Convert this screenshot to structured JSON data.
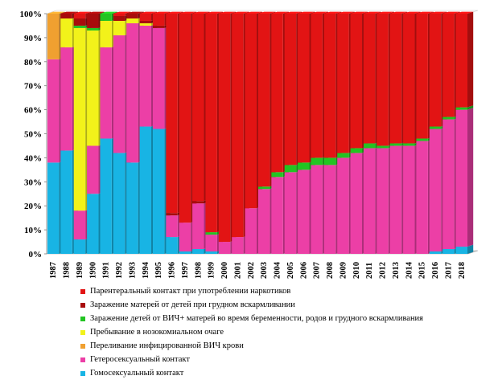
{
  "chart_data": {
    "type": "bar",
    "stacked": true,
    "percent": true,
    "title": "",
    "xlabel": "",
    "ylabel": "",
    "ylim": [
      0,
      100
    ],
    "yticks": [
      "0%",
      "10%",
      "20%",
      "30%",
      "40%",
      "50%",
      "60%",
      "70%",
      "80%",
      "90%",
      "100%"
    ],
    "grid": false,
    "categories": [
      "1987",
      "1988",
      "1989",
      "1990",
      "1991",
      "1992",
      "1993",
      "1994",
      "1995",
      "1996",
      "1997",
      "1998",
      "1999",
      "2000",
      "2001",
      "2002",
      "2003",
      "2004",
      "2005",
      "2006",
      "2007",
      "2008",
      "2009",
      "2010",
      "2011",
      "2012",
      "2013",
      "2014",
      "2015",
      "2016",
      "2017",
      "2018"
    ],
    "series": [
      {
        "name": "Гомосексуальный контакт",
        "color": "#18b4e4",
        "values": [
          38,
          43,
          6,
          25,
          48,
          42,
          38,
          53,
          52,
          7,
          1,
          2,
          1,
          0,
          0,
          0,
          0,
          0,
          0,
          0,
          0,
          0,
          0,
          0,
          0,
          0,
          0,
          0,
          0,
          1,
          2,
          3
        ]
      },
      {
        "name": "Гетеросексуальный контакт",
        "color": "#ec3fa6",
        "values": [
          43,
          43,
          12,
          20,
          38,
          49,
          58,
          42,
          42,
          9,
          12,
          19,
          7,
          5,
          7,
          19,
          27,
          32,
          34,
          35,
          37,
          37,
          40,
          42,
          44,
          44,
          45,
          45,
          47,
          51,
          54,
          57
        ]
      },
      {
        "name": "Переливание  инфицированной ВИЧ крови",
        "color": "#f0a030",
        "values": [
          19,
          0,
          0,
          0,
          0,
          0,
          0,
          0,
          0,
          0,
          0,
          0,
          0,
          0,
          0,
          0,
          0,
          0,
          0,
          0,
          0,
          0,
          0,
          0,
          0,
          0,
          0,
          0,
          0,
          0,
          0,
          0
        ]
      },
      {
        "name": "Пребывание в нозокомиальном очаге",
        "color": "#f2f21a",
        "values": [
          0,
          12,
          76,
          48,
          11,
          6,
          2,
          1,
          0,
          0,
          0,
          0,
          0,
          0,
          0,
          0,
          0,
          0,
          0,
          0,
          0,
          0,
          0,
          0,
          0,
          0,
          0,
          0,
          0,
          0,
          0,
          0
        ]
      },
      {
        "name": "Заражение детей от ВИЧ+ матерей во время беременности, родов и грудного вскармливания",
        "color": "#22c422",
        "values": [
          0,
          0,
          1,
          1,
          3,
          0,
          0,
          0,
          0,
          0,
          0,
          0,
          1,
          0,
          0,
          0,
          1,
          2,
          3,
          3,
          3,
          3,
          2,
          2,
          2,
          1,
          1,
          1,
          1,
          1,
          1,
          1
        ]
      },
      {
        "name": "Заражение матерей от детей при грудном вскармливании",
        "color": "#a80c0c",
        "values": [
          0,
          2,
          3,
          6,
          0,
          2,
          2,
          1,
          1,
          1,
          0,
          1,
          0,
          0,
          0,
          0,
          0,
          0,
          0,
          0,
          0,
          0,
          0,
          0,
          0,
          0,
          0,
          0,
          0,
          0,
          0,
          0
        ]
      },
      {
        "name": "Парентеральный контакт при употреблении наркотиков",
        "color": "#e21414",
        "values": [
          0,
          0,
          2,
          0,
          0,
          1,
          0,
          3,
          5,
          83,
          87,
          78,
          91,
          95,
          93,
          81,
          72,
          66,
          63,
          62,
          60,
          60,
          58,
          56,
          54,
          55,
          54,
          54,
          52,
          47,
          43,
          39
        ]
      }
    ],
    "legend_position": "bottom"
  },
  "legend": {
    "items": [
      {
        "label": "Парентеральный контакт при употреблении наркотиков",
        "color": "#e21414"
      },
      {
        "label": "Заражение матерей от детей при грудном вскармливании",
        "color": "#a80c0c"
      },
      {
        "label": "Заражение детей от ВИЧ+ матерей во время беременности,  родов и грудного вскармливания",
        "color": "#22c422"
      },
      {
        "label": "Пребывание в нозокомиальном очаге",
        "color": "#f2f21a"
      },
      {
        "label": "Переливание  инфицированной ВИЧ крови",
        "color": "#f0a030"
      },
      {
        "label": "Гетеросексуальный контакт",
        "color": "#ec3fa6"
      },
      {
        "label": "Гомосексуальный контакт",
        "color": "#18b4e4"
      }
    ]
  }
}
